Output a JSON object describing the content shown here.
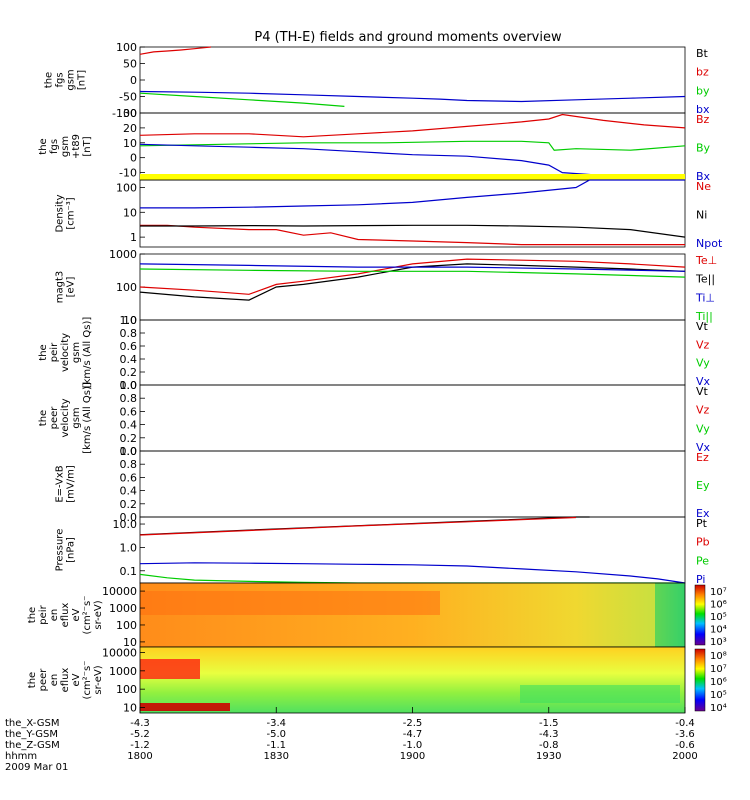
{
  "title": "P4 (TH-E) fields and ground moments overview",
  "colors": {
    "red": "#dd0000",
    "green": "#00cc00",
    "blue": "#0000cc",
    "black": "#000000",
    "yellow": "#ffff00"
  },
  "chart_data": [
    {
      "type": "line",
      "ylabel_lines": [
        "the",
        "fgs",
        "gsm",
        "[nT]"
      ],
      "ylim": [
        -100,
        100
      ],
      "y_ticks": [
        "100",
        "50",
        "0",
        "-50",
        "-100"
      ],
      "legend": [
        {
          "label": "Bt",
          "color": "#000000"
        },
        {
          "label": "bz",
          "color": "#dd0000"
        },
        {
          "label": "by",
          "color": "#00cc00"
        },
        {
          "label": "bx",
          "color": "#0000cc"
        }
      ],
      "series": [
        {
          "name": "bz",
          "color": "#dd0000",
          "x": [
            0,
            5,
            10,
            15,
            20,
            25,
            26
          ],
          "y": [
            78,
            85,
            88,
            91,
            95,
            99,
            100
          ]
        },
        {
          "name": "by",
          "color": "#00cc00",
          "x": [
            0,
            20,
            40,
            60,
            75
          ],
          "y": [
            -40,
            -50,
            -60,
            -70,
            -80
          ]
        },
        {
          "name": "bx",
          "color": "#0000cc",
          "x": [
            0,
            20,
            40,
            60,
            80,
            100,
            110,
            120,
            140,
            160,
            180,
            200
          ],
          "y": [
            -35,
            -37,
            -40,
            -45,
            -50,
            -55,
            -58,
            -62,
            -65,
            -60,
            -55,
            -50
          ]
        }
      ]
    },
    {
      "type": "line",
      "ylabel_lines": [
        "the",
        "fgs",
        "gsm",
        "+t89",
        "[nT]"
      ],
      "ylim": [
        -15,
        30
      ],
      "y_ticks": [
        "30",
        "20",
        "10",
        "0",
        "-10"
      ],
      "legend": [
        {
          "label": "Bz",
          "color": "#dd0000"
        },
        {
          "label": "By",
          "color": "#00cc00"
        },
        {
          "label": "Bx",
          "color": "#0000cc"
        }
      ],
      "series": [
        {
          "name": "Bz",
          "color": "#dd0000",
          "x": [
            0,
            20,
            40,
            60,
            80,
            100,
            120,
            140,
            150,
            155,
            170,
            185,
            200
          ],
          "y": [
            15,
            16,
            16,
            14,
            16,
            18,
            21,
            24,
            26,
            29,
            25,
            22,
            20
          ]
        },
        {
          "name": "By",
          "color": "#00cc00",
          "x": [
            0,
            30,
            60,
            90,
            120,
            140,
            150,
            152,
            160,
            180,
            200
          ],
          "y": [
            8,
            9,
            10,
            10,
            11,
            11,
            10,
            5,
            6,
            5,
            8
          ]
        },
        {
          "name": "Bx",
          "color": "#0000cc",
          "x": [
            0,
            20,
            40,
            60,
            80,
            100,
            120,
            140,
            150,
            155,
            170,
            185,
            200
          ],
          "y": [
            9,
            8,
            7,
            6,
            4,
            2,
            1,
            -2,
            -5,
            -10,
            -12,
            -14,
            -14
          ]
        }
      ]
    },
    {
      "type": "line",
      "ylabel_lines": [
        "Density",
        "[cm^-3]"
      ],
      "log_scale": true,
      "ylim": [
        0.4,
        200
      ],
      "y_ticks": [
        "100",
        "10",
        "1"
      ],
      "legend": [
        {
          "label": "Ne",
          "color": "#dd0000"
        },
        {
          "label": "Ni",
          "color": "#000000"
        },
        {
          "label": "Npot",
          "color": "#0000cc"
        }
      ],
      "series": [
        {
          "name": "Ne",
          "color": "#dd0000",
          "x": [
            0,
            10,
            20,
            40,
            50,
            60,
            70,
            80,
            100,
            120,
            140,
            160,
            180,
            200
          ],
          "y": [
            3,
            3,
            2.5,
            2,
            2,
            1.2,
            1.5,
            0.8,
            0.7,
            0.6,
            0.5,
            0.5,
            0.5,
            0.5
          ]
        },
        {
          "name": "Ni",
          "color": "#000000",
          "x": [
            0,
            20,
            40,
            60,
            80,
            100,
            120,
            140,
            160,
            180,
            200
          ],
          "y": [
            2.8,
            2.8,
            2.9,
            2.8,
            2.9,
            3,
            3,
            2.8,
            2.5,
            2,
            1
          ]
        },
        {
          "name": "Npot",
          "color": "#0000cc",
          "x": [
            0,
            20,
            40,
            60,
            80,
            100,
            120,
            140,
            160,
            165,
            180,
            200
          ],
          "y": [
            15,
            15,
            16,
            18,
            20,
            25,
            40,
            60,
            100,
            200,
            200,
            200
          ]
        }
      ]
    },
    {
      "type": "line",
      "ylabel_lines": [
        "magt3",
        "[eV]"
      ],
      "log_scale": true,
      "ylim": [
        10,
        1000
      ],
      "y_ticks": [
        "1000",
        "100",
        "10"
      ],
      "legend": [
        {
          "label": "Te⊥",
          "color": "#dd0000"
        },
        {
          "label": "Te||",
          "color": "#000000"
        },
        {
          "label": "Ti⊥",
          "color": "#0000cc"
        },
        {
          "label": "Ti||",
          "color": "#00cc00"
        }
      ],
      "series": [
        {
          "name": "Te⊥",
          "color": "#dd0000",
          "x": [
            0,
            20,
            40,
            50,
            60,
            80,
            100,
            120,
            140,
            160,
            180,
            200
          ],
          "y": [
            100,
            80,
            60,
            120,
            150,
            250,
            500,
            700,
            650,
            600,
            500,
            400
          ]
        },
        {
          "name": "Te||",
          "color": "#000000",
          "x": [
            0,
            20,
            40,
            50,
            60,
            80,
            100,
            120,
            140,
            160,
            180,
            200
          ],
          "y": [
            70,
            50,
            40,
            100,
            120,
            200,
            400,
            500,
            450,
            400,
            350,
            300
          ]
        },
        {
          "name": "Ti⊥",
          "color": "#0000cc",
          "x": [
            0,
            40,
            80,
            120,
            160,
            200
          ],
          "y": [
            500,
            450,
            400,
            400,
            350,
            300
          ]
        },
        {
          "name": "Ti||",
          "color": "#00cc00",
          "x": [
            0,
            40,
            80,
            120,
            160,
            200
          ],
          "y": [
            350,
            320,
            300,
            300,
            250,
            200
          ]
        }
      ]
    },
    {
      "type": "line",
      "ylabel_lines": [
        "the",
        "peir",
        "velocity",
        "gsm",
        "[km/s (All Qs)]"
      ],
      "ylim": [
        0,
        1
      ],
      "y_ticks": [
        "1.0",
        "0.8",
        "0.6",
        "0.4",
        "0.2",
        "0.0"
      ],
      "legend": [
        {
          "label": "Vt",
          "color": "#000000"
        },
        {
          "label": "Vz",
          "color": "#dd0000"
        },
        {
          "label": "Vy",
          "color": "#00cc00"
        },
        {
          "label": "Vx",
          "color": "#0000cc"
        }
      ],
      "series": []
    },
    {
      "type": "line",
      "ylabel_lines": [
        "the",
        "peer",
        "velocity",
        "gsm",
        "[km/s (All Qs)]"
      ],
      "ylim": [
        0,
        1
      ],
      "y_ticks": [
        "1.0",
        "0.8",
        "0.6",
        "0.4",
        "0.2",
        "0.0"
      ],
      "legend": [
        {
          "label": "Vt",
          "color": "#000000"
        },
        {
          "label": "Vz",
          "color": "#dd0000"
        },
        {
          "label": "Vy",
          "color": "#00cc00"
        },
        {
          "label": "Vx",
          "color": "#0000cc"
        }
      ],
      "series": []
    },
    {
      "type": "line",
      "ylabel_lines": [
        "E=-VxB",
        "[mV/m]"
      ],
      "ylim": [
        0,
        1
      ],
      "y_ticks": [
        "1.0",
        "0.8",
        "0.6",
        "0.4",
        "0.2",
        "0.0"
      ],
      "legend": [
        {
          "label": "Ez",
          "color": "#dd0000"
        },
        {
          "label": "Ey",
          "color": "#00cc00"
        },
        {
          "label": "Ex",
          "color": "#0000cc"
        }
      ],
      "series": []
    },
    {
      "type": "line",
      "ylabel_lines": [
        "Pressure",
        "[nPa]"
      ],
      "log_scale": true,
      "ylim": [
        0.03,
        20
      ],
      "y_ticks": [
        "10.0",
        "1.0",
        "0.1"
      ],
      "legend": [
        {
          "label": "Pt",
          "color": "#000000"
        },
        {
          "label": "Pb",
          "color": "#dd0000"
        },
        {
          "label": "Pe",
          "color": "#00cc00"
        },
        {
          "label": "Pi",
          "color": "#0000cc"
        }
      ],
      "series": [
        {
          "name": "Pt",
          "color": "#000000",
          "x": [
            0,
            40,
            80,
            120,
            160,
            165
          ],
          "y": [
            3.5,
            5.5,
            8.5,
            13,
            20,
            20
          ]
        },
        {
          "name": "Pb",
          "color": "#dd0000",
          "x": [
            0,
            40,
            80,
            120,
            160
          ],
          "y": [
            3.4,
            5.3,
            8.3,
            12.5,
            19
          ]
        },
        {
          "name": "Pe",
          "color": "#00cc00",
          "x": [
            0,
            10,
            20,
            40,
            60,
            80,
            100,
            120,
            140,
            160,
            180,
            200
          ],
          "y": [
            0.07,
            0.05,
            0.04,
            0.035,
            0.032,
            0.03,
            0.03,
            0.03,
            0.03,
            0.03,
            0.03,
            0.03
          ]
        },
        {
          "name": "Pi",
          "color": "#0000cc",
          "x": [
            0,
            20,
            40,
            60,
            80,
            100,
            120,
            140,
            160,
            180,
            190,
            200
          ],
          "y": [
            0.2,
            0.22,
            0.21,
            0.2,
            0.19,
            0.18,
            0.16,
            0.12,
            0.09,
            0.06,
            0.045,
            0.03
          ]
        }
      ]
    },
    {
      "type": "heatmap",
      "ylabel_lines": [
        "the",
        "peir",
        "en",
        "eflux",
        "eV",
        "(cm^2-s-",
        "sr-eV)"
      ],
      "ylim": [
        5,
        30000
      ],
      "y_ticks": [
        "10000",
        "1000",
        "100",
        "10"
      ],
      "colorbar_ticks": [
        "10^7",
        "10^6",
        "10^5",
        "10^4",
        "10^3"
      ]
    },
    {
      "type": "heatmap",
      "ylabel_lines": [
        "the",
        "peer",
        "en",
        "eflux",
        "eV",
        "(cm^2-s-",
        "sr-eV)"
      ],
      "ylim": [
        5,
        20000
      ],
      "y_ticks": [
        "10000",
        "1000",
        "100",
        "10"
      ],
      "colorbar_ticks": [
        "10^8",
        "10^7",
        "10^6",
        "10^5",
        "10^4"
      ]
    }
  ],
  "x_axis": {
    "row_labels": [
      "the_X-GSM",
      "the_Y-GSM",
      "the_Z-GSM",
      "hhmm",
      "2009 Mar 01"
    ],
    "columns": [
      [
        "-4.3",
        "-5.2",
        "-1.2",
        "1800"
      ],
      [
        "-3.4",
        "-5.0",
        "-1.1",
        "1830"
      ],
      [
        "-2.5",
        "-4.7",
        "-1.0",
        "1900"
      ],
      [
        "-1.5",
        "-4.3",
        "-0.8",
        "1930"
      ],
      [
        "-0.4",
        "-3.6",
        "-0.6",
        "2000"
      ]
    ]
  }
}
